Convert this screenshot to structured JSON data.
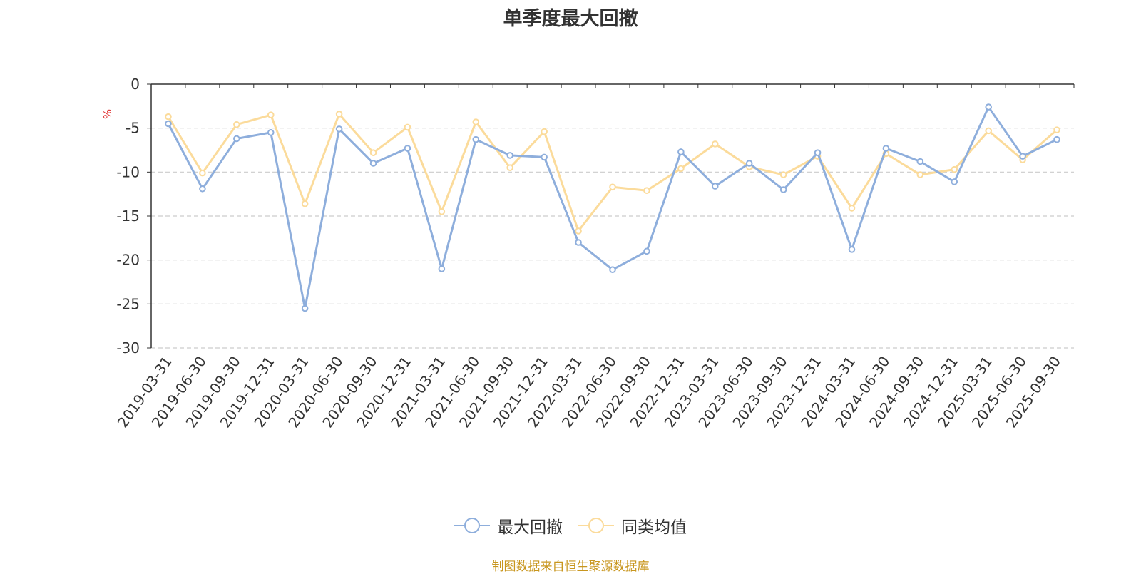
{
  "title": "单季度最大回撤",
  "footer": "制图数据来自恒生聚源数据库",
  "chart_data": {
    "type": "line",
    "title": "单季度最大回撤",
    "ylabel": "%",
    "ylim": [
      -30,
      0
    ],
    "yticks": [
      0,
      -5,
      -10,
      -15,
      -20,
      -25,
      -30
    ],
    "grid": true,
    "legend_position": "bottom",
    "categories": [
      "2019-03-31",
      "2019-06-30",
      "2019-09-30",
      "2019-12-31",
      "2020-03-31",
      "2020-06-30",
      "2020-09-30",
      "2020-12-31",
      "2021-03-31",
      "2021-06-30",
      "2021-09-30",
      "2021-12-31",
      "2022-03-31",
      "2022-06-30",
      "2022-09-30",
      "2022-12-31",
      "2023-03-31",
      "2023-06-30",
      "2023-09-30",
      "2023-12-31",
      "2024-03-31",
      "2024-06-30",
      "2024-09-30",
      "2024-12-31",
      "2025-03-31",
      "2025-06-30",
      "2025-09-30"
    ],
    "series": [
      {
        "name": "最大回撤",
        "color": "#8eaedc",
        "values": [
          -4.5,
          -11.9,
          -6.2,
          -5.5,
          -25.5,
          -5.1,
          -9.0,
          -7.3,
          -21.0,
          -6.3,
          -8.1,
          -8.3,
          -18.0,
          -21.1,
          -19.0,
          -7.7,
          -11.6,
          -9.0,
          -12.0,
          -7.8,
          -18.8,
          -7.3,
          -8.8,
          -11.1,
          -2.6,
          -8.2,
          -6.3
        ]
      },
      {
        "name": "同类均值",
        "color": "#fbdb9b",
        "values": [
          -3.7,
          -10.1,
          -4.6,
          -3.5,
          -13.6,
          -3.4,
          -7.8,
          -4.9,
          -14.5,
          -4.3,
          -9.5,
          -5.4,
          -16.7,
          -11.7,
          -12.1,
          -9.6,
          -6.8,
          -9.4,
          -10.3,
          -8.2,
          -14.1,
          -7.9,
          -10.3,
          -9.7,
          -5.3,
          -8.6,
          -5.2
        ]
      }
    ]
  }
}
